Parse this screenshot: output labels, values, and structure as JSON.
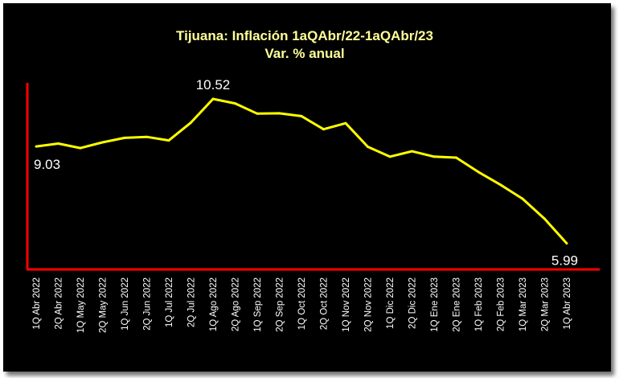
{
  "chart_data": {
    "type": "line",
    "title": "Tijuana: Inflación 1aQAbr/22-1aQAbr/23",
    "subtitle": "Var. % anual",
    "xlabel": "",
    "ylabel": "",
    "ylim": [
      5.3,
      11.0
    ],
    "grid": false,
    "legend": "none",
    "categories": [
      "1Q Abr 2022",
      "2Q Abr 2022",
      "1Q May 2022",
      "2Q May 2022",
      "1Q Jun 2022",
      "2Q Jun 2022",
      "1Q Jul 2022",
      "2Q Jul 2022",
      "1Q Ago 2022",
      "2Q Ago 2022",
      "1Q Sep 2022",
      "2Q Sep 2022",
      "1Q Oct 2022",
      "2Q Oct 2022",
      "1Q Nov 2022",
      "2Q Nov 2022",
      "1Q Dic 2022",
      "2Q Dic 2022",
      "1Q Ene 2023",
      "2Q Ene 2023",
      "1Q Feb 2023",
      "2Q Feb 2023",
      "1Q Mar 2023",
      "2Q Mar 2023",
      "1Q Abr 2023"
    ],
    "series": [
      {
        "name": "Var. % anual",
        "values": [
          9.03,
          9.12,
          8.98,
          9.16,
          9.3,
          9.33,
          9.22,
          9.78,
          10.52,
          10.38,
          10.06,
          10.07,
          9.98,
          9.57,
          9.76,
          9.02,
          8.71,
          8.88,
          8.71,
          8.68,
          8.23,
          7.83,
          7.39,
          6.76,
          5.99
        ]
      }
    ],
    "data_labels": [
      {
        "index": 0,
        "text": "9.03"
      },
      {
        "index": 8,
        "text": "10.52"
      },
      {
        "index": 24,
        "text": "5.99"
      }
    ],
    "colors": {
      "background": "#000000",
      "line": "#ffff00",
      "axis": "#ff0000",
      "title": "#ffff99",
      "text": "#ffffff"
    }
  }
}
